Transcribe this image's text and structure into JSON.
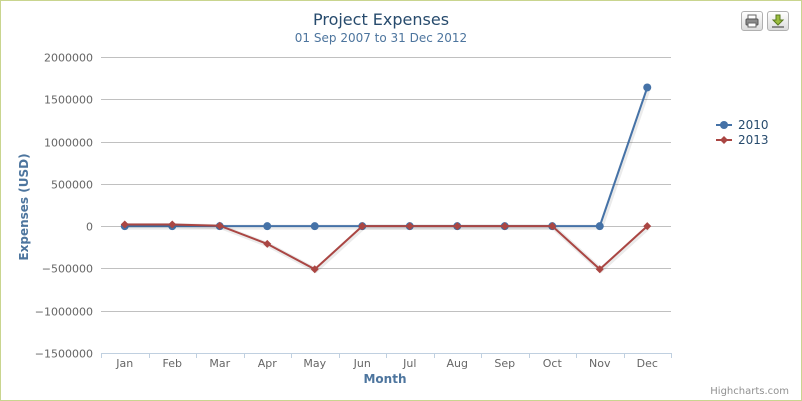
{
  "chart_data": {
    "type": "line",
    "title": "Project Expenses",
    "subtitle": "01 Sep 2007 to 31 Dec 2012",
    "xlabel": "Month",
    "ylabel": "Expenses (USD)",
    "categories": [
      "Jan",
      "Feb",
      "Mar",
      "Apr",
      "May",
      "Jun",
      "Jul",
      "Aug",
      "Sep",
      "Oct",
      "Nov",
      "Dec"
    ],
    "ylim": [
      -1500000,
      2000000
    ],
    "yticks": [
      2000000,
      1500000,
      1000000,
      500000,
      0,
      -500000,
      -1000000,
      -1500000
    ],
    "ytick_labels": [
      "2000000",
      "1500000",
      "1000000",
      "500000",
      "0",
      "−500000",
      "−1000000",
      "−1500000"
    ],
    "grid": true,
    "legend_position": "right",
    "series": [
      {
        "name": "2010",
        "color": "#4572a7",
        "marker": "circle",
        "values": [
          0,
          0,
          0,
          0,
          0,
          0,
          0,
          0,
          0,
          0,
          0,
          1640000
        ]
      },
      {
        "name": "2013",
        "color": "#aa4643",
        "marker": "diamond",
        "values": [
          20000,
          20000,
          5000,
          -210000,
          -510000,
          0,
          0,
          0,
          0,
          0,
          -510000,
          0
        ]
      }
    ]
  },
  "toolbar": {
    "print_icon": "printer-icon",
    "download_icon": "download-icon"
  },
  "credits": "Highcharts.com"
}
